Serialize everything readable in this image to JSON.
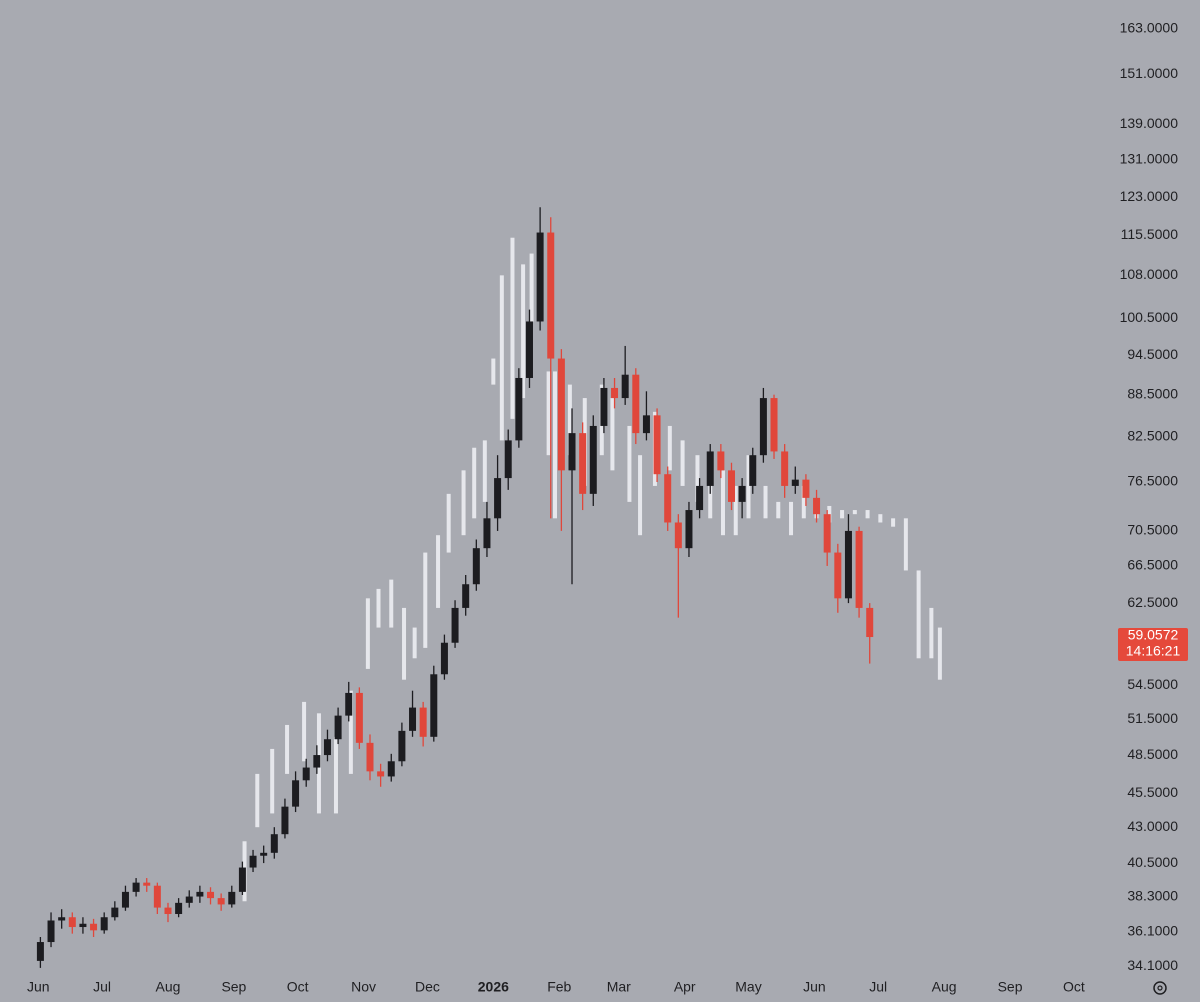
{
  "chart_data": {
    "type": "candlestick",
    "log_scale": true,
    "up_color": "#1c1c20",
    "down_color": "#e0473b",
    "xlim": [
      -18,
      504
    ],
    "ylim": [
      33.6,
      171
    ],
    "xticks": [
      {
        "value": 0,
        "label": "Jun"
      },
      {
        "value": 30,
        "label": "Jul"
      },
      {
        "value": 61,
        "label": "Aug"
      },
      {
        "value": 92,
        "label": "Sep"
      },
      {
        "value": 122,
        "label": "Oct"
      },
      {
        "value": 153,
        "label": "Nov"
      },
      {
        "value": 183,
        "label": "Dec"
      },
      {
        "value": 214,
        "label": "2026",
        "bold": true
      },
      {
        "value": 245,
        "label": "Feb"
      },
      {
        "value": 273,
        "label": "Mar"
      },
      {
        "value": 304,
        "label": "Apr"
      },
      {
        "value": 334,
        "label": "May"
      },
      {
        "value": 365,
        "label": "Jun"
      },
      {
        "value": 395,
        "label": "Jul"
      },
      {
        "value": 426,
        "label": "Aug"
      },
      {
        "value": 457,
        "label": "Sep"
      },
      {
        "value": 487,
        "label": "Oct"
      }
    ],
    "yticks": [
      {
        "value": 163,
        "label": "163.0000"
      },
      {
        "value": 151,
        "label": "151.0000"
      },
      {
        "value": 139,
        "label": "139.0000"
      },
      {
        "value": 131,
        "label": "131.0000"
      },
      {
        "value": 123,
        "label": "123.0000"
      },
      {
        "value": 115.5,
        "label": "115.5000"
      },
      {
        "value": 108,
        "label": "108.0000"
      },
      {
        "value": 100.5,
        "label": "100.5000"
      },
      {
        "value": 94.5,
        "label": "94.5000"
      },
      {
        "value": 88.5,
        "label": "88.5000"
      },
      {
        "value": 82.5,
        "label": "82.5000"
      },
      {
        "value": 76.5,
        "label": "76.5000"
      },
      {
        "value": 70.5,
        "label": "70.5000"
      },
      {
        "value": 66.5,
        "label": "66.5000"
      },
      {
        "value": 62.5,
        "label": "62.5000"
      },
      {
        "value": 54.5,
        "label": "54.5000"
      },
      {
        "value": 51.5,
        "label": "51.5000"
      },
      {
        "value": 48.5,
        "label": "48.5000"
      },
      {
        "value": 45.5,
        "label": "45.5000"
      },
      {
        "value": 43,
        "label": "43.0000"
      },
      {
        "value": 40.5,
        "label": "40.5000"
      },
      {
        "value": 38.3,
        "label": "38.3000"
      },
      {
        "value": 36.1,
        "label": "36.1000"
      },
      {
        "value": 34.1,
        "label": "34.1000"
      }
    ],
    "x": [
      1,
      6,
      11,
      16,
      21,
      26,
      31,
      36,
      41,
      46,
      51,
      56,
      61,
      66,
      71,
      76,
      81,
      86,
      91,
      96,
      101,
      106,
      111,
      116,
      121,
      126,
      131,
      136,
      141,
      146,
      151,
      156,
      161,
      166,
      171,
      176,
      181,
      186,
      191,
      196,
      201,
      206,
      211,
      216,
      221,
      226,
      231,
      236,
      241,
      246,
      251,
      256,
      261,
      266,
      271,
      276,
      281,
      286,
      291,
      296,
      301,
      306,
      311,
      316,
      321,
      326,
      331,
      336,
      341,
      346,
      351,
      356,
      361,
      366,
      371,
      376,
      381,
      386,
      391
    ],
    "open": [
      34.4,
      35.5,
      36.8,
      37.0,
      36.4,
      36.6,
      36.2,
      37.0,
      37.6,
      38.6,
      39.2,
      39.0,
      37.6,
      37.2,
      37.9,
      38.3,
      38.6,
      38.2,
      37.8,
      38.6,
      40.2,
      41.0,
      41.2,
      42.5,
      44.5,
      46.5,
      47.5,
      48.5,
      49.8,
      51.8,
      53.8,
      49.5,
      47.2,
      46.8,
      48.0,
      50.5,
      52.5,
      50.0,
      55.5,
      58.5,
      62.0,
      64.5,
      68.5,
      72.0,
      77.0,
      82.0,
      91.0,
      100.0,
      116.0,
      94.0,
      78.0,
      83.0,
      75.0,
      84.0,
      89.5,
      88.0,
      91.5,
      83.0,
      85.5,
      77.5,
      71.5,
      68.5,
      73.0,
      76.0,
      80.5,
      78.0,
      74.0,
      76.0,
      80.0,
      88.0,
      80.5,
      76.0,
      76.8,
      74.5,
      72.5,
      68.0,
      63.0,
      70.5,
      62.0
    ],
    "high": [
      35.8,
      37.3,
      37.5,
      37.3,
      37.0,
      36.9,
      37.3,
      38.0,
      39.0,
      39.5,
      39.5,
      39.2,
      37.9,
      38.2,
      38.7,
      39.0,
      38.9,
      38.5,
      39.0,
      40.6,
      41.4,
      41.7,
      43.0,
      45.1,
      47.2,
      48.2,
      49.3,
      50.6,
      52.5,
      54.8,
      54.3,
      50.2,
      47.8,
      48.6,
      51.2,
      54.0,
      53.0,
      56.3,
      59.3,
      62.8,
      65.5,
      69.5,
      74.0,
      80.0,
      83.5,
      92.5,
      102.0,
      121.0,
      119.0,
      95.5,
      86.5,
      84.5,
      85.5,
      91.0,
      91.0,
      96.0,
      92.5,
      89.0,
      86.5,
      78.5,
      72.5,
      74.0,
      77.0,
      81.5,
      81.5,
      79.0,
      77.0,
      81.0,
      89.5,
      88.5,
      81.5,
      78.5,
      77.5,
      75.5,
      73.0,
      69.0,
      72.5,
      71.0,
      62.5
    ],
    "low": [
      34.0,
      35.2,
      36.3,
      36.0,
      36.0,
      35.8,
      36.0,
      36.8,
      37.4,
      38.3,
      38.6,
      37.2,
      36.7,
      37.0,
      37.6,
      37.9,
      37.8,
      37.4,
      37.6,
      38.4,
      39.9,
      40.5,
      40.8,
      42.2,
      44.1,
      46.0,
      47.0,
      48.0,
      49.4,
      51.3,
      49.0,
      46.5,
      46.0,
      46.4,
      47.6,
      50.0,
      49.2,
      49.6,
      55.0,
      58.0,
      61.2,
      63.8,
      67.5,
      70.5,
      75.5,
      81.0,
      89.5,
      98.5,
      72.0,
      70.5,
      64.5,
      73.0,
      73.5,
      83.0,
      86.5,
      87.0,
      81.5,
      82.0,
      76.5,
      70.5,
      61.0,
      67.5,
      72.0,
      75.0,
      77.0,
      73.0,
      72.0,
      75.0,
      79.0,
      79.5,
      74.5,
      75.0,
      73.5,
      71.5,
      66.5,
      61.5,
      62.5,
      61.0,
      56.5
    ],
    "close": [
      35.5,
      36.8,
      37.0,
      36.4,
      36.6,
      36.2,
      37.0,
      37.6,
      38.6,
      39.2,
      39.0,
      37.6,
      37.2,
      37.9,
      38.3,
      38.6,
      38.2,
      37.8,
      38.6,
      40.2,
      41.0,
      41.2,
      42.5,
      44.5,
      46.5,
      47.5,
      48.5,
      49.8,
      51.8,
      53.8,
      49.5,
      47.2,
      46.8,
      48.0,
      50.5,
      52.5,
      50.0,
      55.5,
      58.5,
      62.0,
      64.5,
      68.5,
      72.0,
      77.0,
      82.0,
      91.0,
      100.0,
      116.0,
      94.0,
      78.0,
      83.0,
      75.0,
      84.0,
      89.5,
      88.0,
      91.5,
      83.0,
      85.5,
      77.5,
      71.5,
      68.5,
      73.0,
      76.0,
      80.5,
      78.0,
      74.0,
      76.0,
      80.0,
      88.0,
      80.5,
      76.0,
      76.8,
      74.5,
      72.5,
      68.0,
      63.0,
      70.5,
      62.0,
      59.06
    ],
    "overlay": {
      "color": "#e6e7ec",
      "x": [
        97,
        103,
        110,
        117,
        125,
        132,
        140,
        147,
        155,
        160,
        166,
        172,
        177,
        182,
        188,
        193,
        200,
        205,
        210,
        214,
        218,
        223,
        228,
        232,
        240,
        243,
        250,
        257,
        265,
        270,
        278,
        283,
        290,
        297,
        303,
        310,
        316,
        322,
        328,
        334,
        342,
        348,
        354,
        360,
        366,
        372,
        378,
        384,
        390,
        396,
        402,
        408,
        414,
        420,
        424
      ],
      "low": [
        38,
        43,
        44,
        47,
        48,
        44,
        44,
        47,
        56,
        60,
        60,
        55,
        57,
        58,
        62,
        68,
        70,
        72,
        74,
        90,
        82,
        85,
        88,
        100,
        80,
        72,
        80,
        76,
        80,
        78,
        74,
        70,
        76,
        78,
        76,
        74,
        72,
        70,
        70,
        72,
        72,
        72,
        70,
        72,
        72,
        71.5,
        72,
        72.5,
        72,
        71.5,
        71,
        66,
        57,
        57,
        55
      ],
      "high": [
        42,
        47,
        49,
        51,
        53,
        52,
        50,
        54,
        63,
        64,
        65,
        62,
        60,
        68,
        70,
        75,
        78,
        81,
        82,
        94,
        108,
        115,
        110,
        112,
        92,
        92,
        90,
        88,
        90,
        88,
        84,
        80,
        86,
        84,
        82,
        80,
        80,
        78,
        76,
        80,
        76,
        74,
        74,
        76,
        74,
        73.5,
        73,
        73,
        73,
        72.5,
        72,
        72,
        66,
        62,
        60
      ]
    },
    "last_price": 59.0572,
    "last_price_color": "#e5493b",
    "countdown": "14:16:21"
  }
}
